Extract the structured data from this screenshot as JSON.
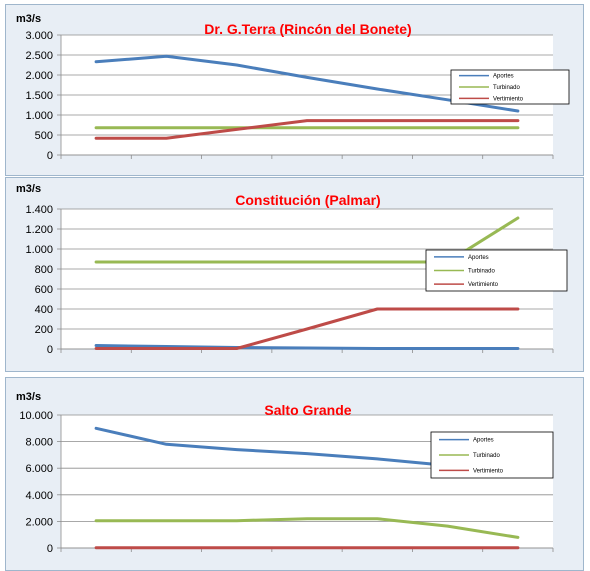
{
  "colors": {
    "aportes": "#4a7ebb",
    "turbinado": "#98b954",
    "vertimiento": "#be4b48",
    "title": "#ff0000"
  },
  "chart_data": [
    {
      "type": "line",
      "title": "Dr. G.Terra (Rincón del Bonete)",
      "ylabel": "m3/s",
      "ylim": [
        0,
        3000
      ],
      "yticks": [
        0,
        500,
        1000,
        1500,
        2000,
        2500,
        3000
      ],
      "ytick_labels": [
        "0",
        "500",
        "1.000",
        "1.500",
        "2.000",
        "2.500",
        "3.000"
      ],
      "x": [
        1,
        2,
        3,
        4,
        5,
        6,
        7
      ],
      "legend_position": "right",
      "series": [
        {
          "name": "Aportes",
          "values": [
            2330,
            2470,
            2250,
            1940,
            1650,
            1380,
            1100
          ]
        },
        {
          "name": "Turbinado",
          "values": [
            680,
            680,
            680,
            680,
            680,
            680,
            680
          ]
        },
        {
          "name": "Vertimiento",
          "values": [
            420,
            420,
            640,
            860,
            860,
            860,
            860
          ]
        }
      ]
    },
    {
      "type": "line",
      "title": "Constitución (Palmar)",
      "ylabel": "m3/s",
      "ylim": [
        0,
        1400
      ],
      "yticks": [
        0,
        200,
        400,
        600,
        800,
        1000,
        1200,
        1400
      ],
      "ytick_labels": [
        "0",
        "200",
        "400",
        "600",
        "800",
        "1.000",
        "1.200",
        "1.400"
      ],
      "x": [
        1,
        2,
        3,
        4,
        5,
        6,
        7
      ],
      "legend_position": "right",
      "series": [
        {
          "name": "Aportes",
          "values": [
            35,
            25,
            15,
            10,
            5,
            5,
            5
          ]
        },
        {
          "name": "Turbinado",
          "values": [
            870,
            870,
            870,
            870,
            870,
            870,
            1310
          ]
        },
        {
          "name": "Vertimiento",
          "values": [
            5,
            5,
            5,
            200,
            400,
            400,
            400
          ]
        }
      ]
    },
    {
      "type": "line",
      "title": "Salto Grande",
      "ylabel": "m3/s",
      "ylim": [
        0,
        10000
      ],
      "yticks": [
        0,
        2000,
        4000,
        6000,
        8000,
        10000
      ],
      "ytick_labels": [
        "0",
        "2.000",
        "4.000",
        "6.000",
        "8.000",
        "10.000"
      ],
      "x": [
        1,
        2,
        3,
        4,
        5,
        6,
        7
      ],
      "legend_position": "right",
      "series": [
        {
          "name": "Aportes",
          "values": [
            9000,
            7800,
            7400,
            7100,
            6700,
            6200,
            5600
          ]
        },
        {
          "name": "Turbinado",
          "values": [
            2050,
            2050,
            2050,
            2200,
            2200,
            1650,
            800
          ]
        },
        {
          "name": "Vertimiento",
          "values": [
            20,
            20,
            20,
            20,
            20,
            20,
            20
          ]
        }
      ]
    }
  ]
}
